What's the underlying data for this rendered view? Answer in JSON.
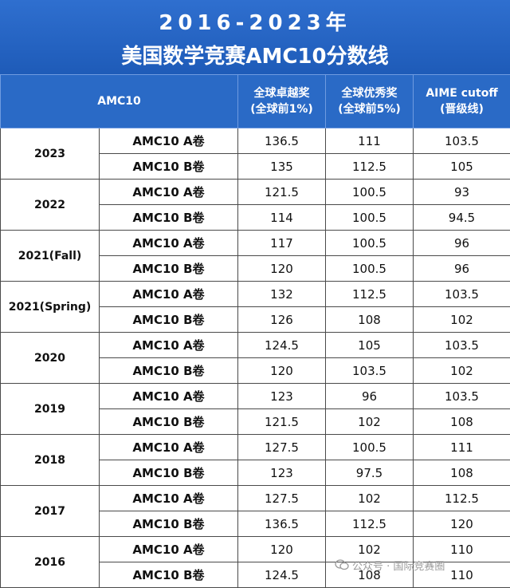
{
  "title": {
    "line1": "2016-2023年",
    "line2": "美国数学竞赛AMC10分数线"
  },
  "header": {
    "col1": "AMC10",
    "col2_line1": "全球卓越奖",
    "col2_line2": "(全球前1%)",
    "col3_line1": "全球优秀奖",
    "col3_line2": "(全球前5%)",
    "col4_line1": "AIME cutoff",
    "col4_line2": "(晋级线)"
  },
  "years": [
    {
      "year": "2023",
      "rows": [
        {
          "paper": "AMC10 A卷",
          "distinction": "136.5",
          "honor": "111",
          "aime": "103.5"
        },
        {
          "paper": "AMC10 B卷",
          "distinction": "135",
          "honor": "112.5",
          "aime": "105"
        }
      ]
    },
    {
      "year": "2022",
      "rows": [
        {
          "paper": "AMC10 A卷",
          "distinction": "121.5",
          "honor": "100.5",
          "aime": "93"
        },
        {
          "paper": "AMC10 B卷",
          "distinction": "114",
          "honor": "100.5",
          "aime": "94.5"
        }
      ]
    },
    {
      "year": "2021(Fall)",
      "rows": [
        {
          "paper": "AMC10 A卷",
          "distinction": "117",
          "honor": "100.5",
          "aime": "96"
        },
        {
          "paper": "AMC10 B卷",
          "distinction": "120",
          "honor": "100.5",
          "aime": "96"
        }
      ]
    },
    {
      "year": "2021(Spring)",
      "rows": [
        {
          "paper": "AMC10 A卷",
          "distinction": "132",
          "honor": "112.5",
          "aime": "103.5"
        },
        {
          "paper": "AMC10 B卷",
          "distinction": "126",
          "honor": "108",
          "aime": "102"
        }
      ]
    },
    {
      "year": "2020",
      "rows": [
        {
          "paper": "AMC10 A卷",
          "distinction": "124.5",
          "honor": "105",
          "aime": "103.5"
        },
        {
          "paper": "AMC10 B卷",
          "distinction": "120",
          "honor": "103.5",
          "aime": "102"
        }
      ]
    },
    {
      "year": "2019",
      "rows": [
        {
          "paper": "AMC10 A卷",
          "distinction": "123",
          "honor": "96",
          "aime": "103.5"
        },
        {
          "paper": "AMC10 B卷",
          "distinction": "121.5",
          "honor": "102",
          "aime": "108"
        }
      ]
    },
    {
      "year": "2018",
      "rows": [
        {
          "paper": "AMC10 A卷",
          "distinction": "127.5",
          "honor": "100.5",
          "aime": "111"
        },
        {
          "paper": "AMC10 B卷",
          "distinction": "123",
          "honor": "97.5",
          "aime": "108"
        }
      ]
    },
    {
      "year": "2017",
      "rows": [
        {
          "paper": "AMC10 A卷",
          "distinction": "127.5",
          "honor": "102",
          "aime": "112.5"
        },
        {
          "paper": "AMC10 B卷",
          "distinction": "136.5",
          "honor": "112.5",
          "aime": "120"
        }
      ]
    },
    {
      "year": "2016",
      "rows": [
        {
          "paper": "AMC10 A卷",
          "distinction": "120",
          "honor": "102",
          "aime": "110"
        },
        {
          "paper": "AMC10 B卷",
          "distinction": "124.5",
          "honor": "108",
          "aime": "110"
        }
      ]
    }
  ],
  "watermark": {
    "text": "公众号 · 国际竞赛圈",
    "icon": "wechat-icon"
  }
}
